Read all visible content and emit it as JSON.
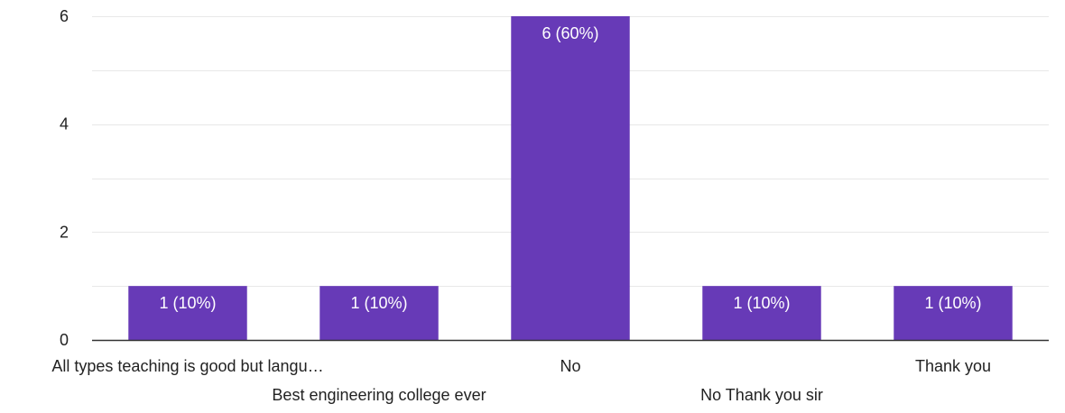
{
  "chart_data": {
    "type": "bar",
    "categories": [
      "All types teaching is good but langu…",
      "Best engineering college ever",
      "No",
      "No Thank you sir",
      "Thank you"
    ],
    "values": [
      1,
      1,
      6,
      1,
      1
    ],
    "data_labels": [
      "1 (10%)",
      "1 (10%)",
      "6 (60%)",
      "1 (10%)",
      "1 (10%)"
    ],
    "y_ticks": [
      0,
      2,
      4,
      6
    ],
    "ylim": [
      0,
      6
    ],
    "grid": true,
    "title": "",
    "xlabel": "",
    "ylabel": "",
    "colors": {
      "bar": "#673ab7",
      "grid": "#e8e8e8",
      "axis": "#333333",
      "tick_text": "#222222",
      "data_label": "#ffffff"
    }
  }
}
